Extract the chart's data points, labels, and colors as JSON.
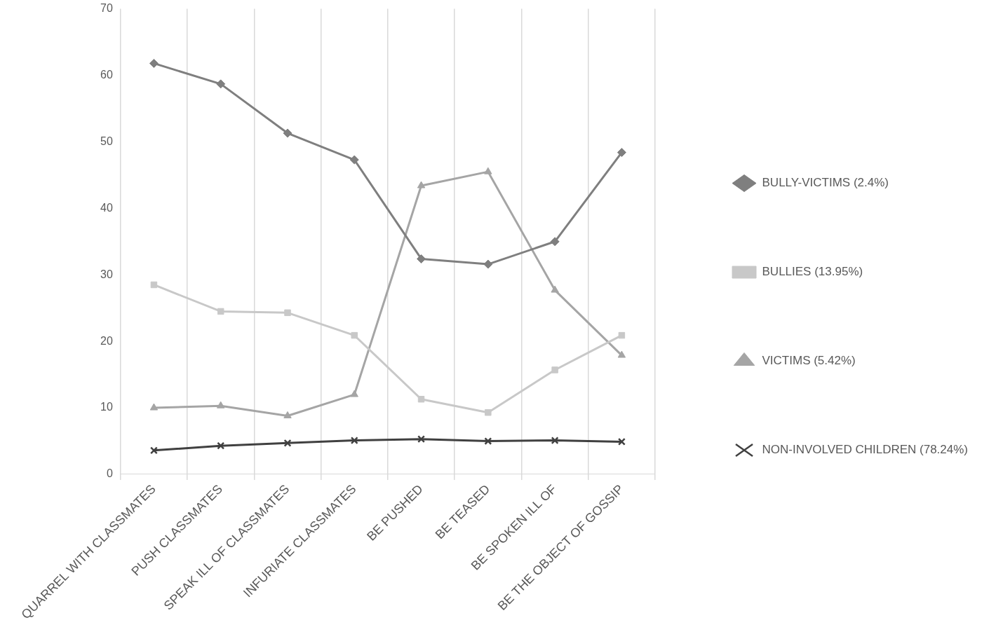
{
  "chart_data": {
    "type": "line",
    "categories": [
      "QUARREL WITH CLASSMATES",
      "PUSH CLASSMATES",
      "SPEAK ILL OF CLASSMATES",
      "INFURIATE CLASSMATES",
      "BE PUSHED",
      "BE TEASED",
      "BE SPOKEN ILL OF",
      "BE THE OBJECT OF GOSSIP"
    ],
    "series": [
      {
        "name": "BULLY-VICTIMS (2.4%)",
        "color": "#7f7f7f",
        "marker": "diamond",
        "values": [
          61.8,
          58.7,
          51.3,
          47.3,
          32.4,
          31.6,
          35.0,
          48.4
        ]
      },
      {
        "name": "BULLIES (13.95%)",
        "color": "#c8c8c8",
        "marker": "square",
        "values": [
          28.5,
          24.5,
          24.3,
          20.9,
          11.3,
          9.3,
          15.7,
          20.9
        ]
      },
      {
        "name": "VICTIMS (5.42%)",
        "color": "#a5a5a5",
        "marker": "triangle",
        "values": [
          10.0,
          10.3,
          8.8,
          12.0,
          43.4,
          45.5,
          27.7,
          17.9
        ]
      },
      {
        "name": "NON-INVOLVED CHILDREN (78.24%)",
        "color": "#404040",
        "marker": "cross",
        "values": [
          3.6,
          4.3,
          4.7,
          5.1,
          5.3,
          5.0,
          5.1,
          4.9
        ]
      }
    ],
    "ylim": [
      0,
      70
    ],
    "yticks": [
      0,
      10,
      20,
      30,
      40,
      50,
      60,
      70
    ],
    "grid": "x",
    "legend": "right",
    "line_style": "solid"
  }
}
